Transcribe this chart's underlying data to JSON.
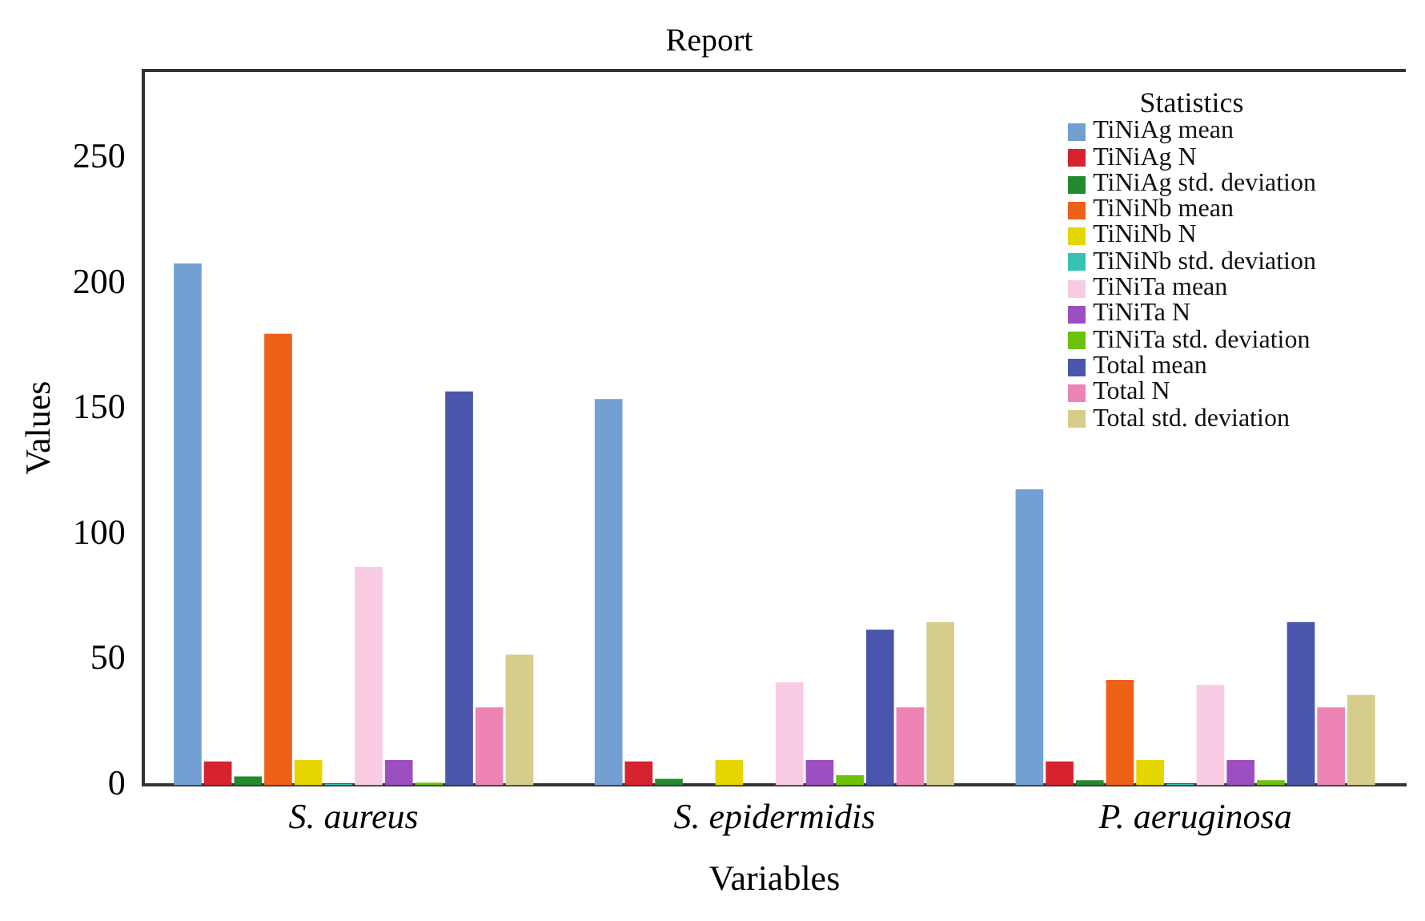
{
  "chart_data": {
    "type": "bar",
    "title": "Report",
    "xlabel": "Variables",
    "ylabel": "Values",
    "legend_title": "Statistics",
    "legend": "top right",
    "categories": [
      "S. aureus",
      "S. epidermidis",
      "P. aeruginosa"
    ],
    "ylim": [
      0,
      285
    ],
    "yticks": [
      0,
      50,
      100,
      150,
      200,
      250
    ],
    "grid": false,
    "series": [
      {
        "name": "TiNiAg mean",
        "color": "#739fd3",
        "values": [
          208,
          154,
          118
        ]
      },
      {
        "name": "TiNiAg N",
        "color": "#d6232f",
        "values": [
          9.5,
          9.5,
          9.5
        ]
      },
      {
        "name": "TiNiAg std. deviation",
        "color": "#238a2f",
        "values": [
          3.5,
          2.5,
          2
        ]
      },
      {
        "name": "TiNiNb mean",
        "color": "#ed6119",
        "values": [
          180,
          null,
          42
        ]
      },
      {
        "name": "TiNiNb N",
        "color": "#e5d500",
        "values": [
          10,
          10,
          10
        ]
      },
      {
        "name": "TiNiNb std. deviation",
        "color": "#36c3b4",
        "values": [
          0.5,
          null,
          0.5
        ]
      },
      {
        "name": "TiNiTa mean",
        "color": "#f8cbe3",
        "values": [
          87,
          41,
          40
        ]
      },
      {
        "name": "TiNiTa N",
        "color": "#9c4fc1",
        "values": [
          10,
          10,
          10
        ]
      },
      {
        "name": "TiNiTa std. deviation",
        "color": "#6cc10a",
        "values": [
          1,
          4,
          2
        ]
      },
      {
        "name": "Total mean",
        "color": "#4a55ad",
        "values": [
          157,
          62,
          65
        ]
      },
      {
        "name": "Total N",
        "color": "#ee84b5",
        "values": [
          31,
          31,
          31
        ]
      },
      {
        "name": "Total std. deviation",
        "color": "#d6cd8c",
        "values": [
          52,
          65,
          36
        ]
      }
    ]
  }
}
